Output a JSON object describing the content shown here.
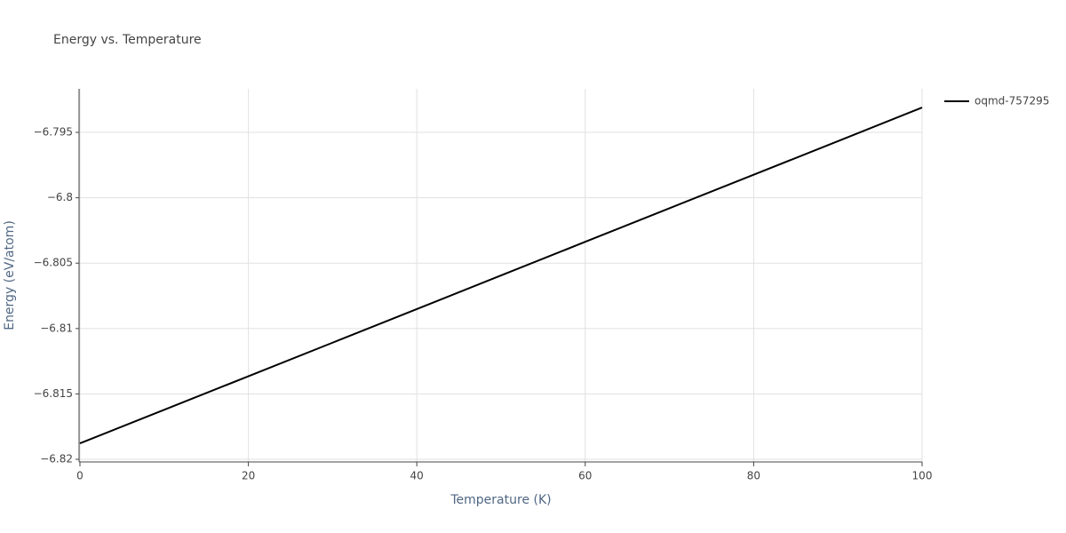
{
  "chart_data": {
    "type": "line",
    "title": "Energy vs. Temperature",
    "x_label": "Temperature (K)",
    "y_label": "Energy (eV/atom)",
    "x": [
      0,
      10,
      20,
      30,
      40,
      50,
      60,
      70,
      80,
      90,
      100
    ],
    "series": [
      {
        "name": "oqmd-757295",
        "color": "#000000",
        "values": [
          -6.81878,
          -6.81621,
          -6.81365,
          -6.81108,
          -6.80851,
          -6.80594,
          -6.80337,
          -6.8008,
          -6.79824,
          -6.79567,
          -6.7931
        ]
      }
    ],
    "xlim": [
      0,
      100
    ],
    "xticks": [
      0,
      20,
      40,
      60,
      80,
      100
    ],
    "ylim": [
      -6.8202,
      -6.79167
    ],
    "yticks": [
      {
        "value": -6.82,
        "label": "−6.82"
      },
      {
        "value": -6.815,
        "label": "−6.815"
      },
      {
        "value": -6.81,
        "label": "−6.81"
      },
      {
        "value": -6.805,
        "label": "−6.805"
      },
      {
        "value": -6.8,
        "label": "−6.8"
      },
      {
        "value": -6.795,
        "label": "−6.795"
      }
    ],
    "grid": true
  }
}
